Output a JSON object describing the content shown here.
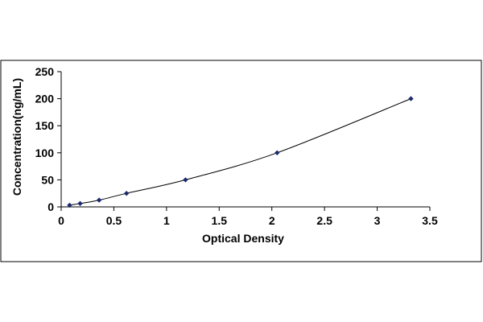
{
  "chart_data": {
    "type": "scatter",
    "title": "",
    "xlabel": "Optical Density",
    "ylabel": "Concentration(ng/mL)",
    "xlim": [
      0,
      3.5
    ],
    "ylim": [
      0,
      250
    ],
    "xticks": [
      "0",
      "0.5",
      "1",
      "1.5",
      "2",
      "2.5",
      "3",
      "3.5"
    ],
    "yticks": [
      "0",
      "50",
      "100",
      "150",
      "200",
      "250"
    ],
    "grid": false,
    "legend": "none",
    "marker": "diamond",
    "color": "#1a2a6e",
    "line_color": "#000000",
    "series": [
      {
        "x": [
          0.08,
          0.18,
          0.36,
          0.62,
          1.18,
          2.05,
          3.32
        ],
        "y": [
          3.125,
          6.25,
          12.5,
          25,
          50,
          100,
          200
        ]
      }
    ]
  }
}
